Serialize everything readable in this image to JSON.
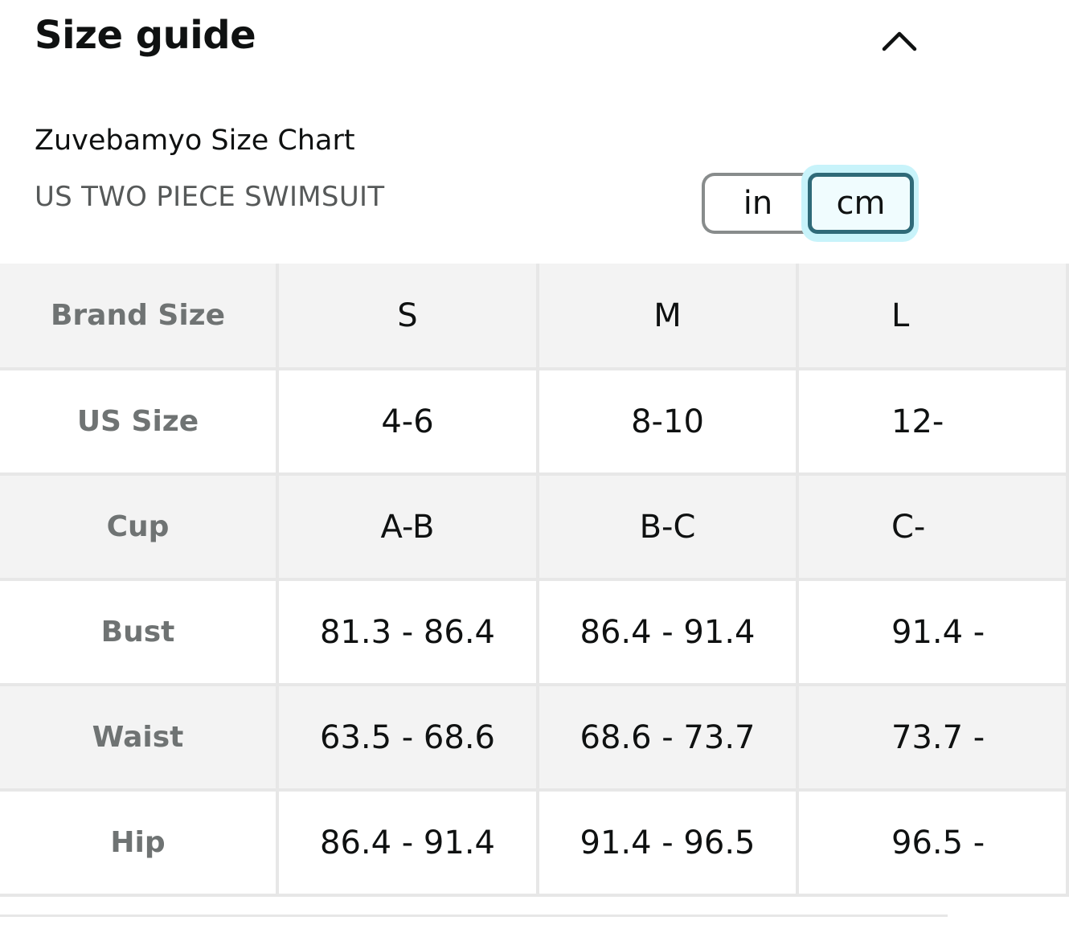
{
  "header": {
    "title": "Size guide",
    "collapse_icon": "chevron-up-icon"
  },
  "chart": {
    "title": "Zuvebamyo Size Chart",
    "subtitle": "US TWO PIECE SWIMSUIT"
  },
  "unit_toggle": {
    "options": [
      "in",
      "cm"
    ],
    "selected": "cm"
  },
  "table": {
    "rows": [
      {
        "label": "Brand Size",
        "values": [
          "S",
          "M",
          "L"
        ]
      },
      {
        "label": "US Size",
        "values": [
          "4-6",
          "8-10",
          "12-"
        ]
      },
      {
        "label": "Cup",
        "values": [
          "A-B",
          "B-C",
          "C-"
        ]
      },
      {
        "label": "Bust",
        "values": [
          "81.3 - 86.4",
          "86.4 - 91.4",
          "91.4 -"
        ]
      },
      {
        "label": "Waist",
        "values": [
          "63.5 - 68.6",
          "68.6 - 73.7",
          "73.7 -"
        ]
      },
      {
        "label": "Hip",
        "values": [
          "86.4 - 91.4",
          "91.4 - 96.5",
          "96.5 -"
        ]
      }
    ]
  },
  "colors": {
    "text": "#0f1111",
    "label": "#6f7373",
    "subtitle": "#565959",
    "selected_border": "#2e6a78",
    "selected_halo": "#c8f3fa",
    "row_shade": "#f3f3f3",
    "grid": "#e7e7e7"
  }
}
